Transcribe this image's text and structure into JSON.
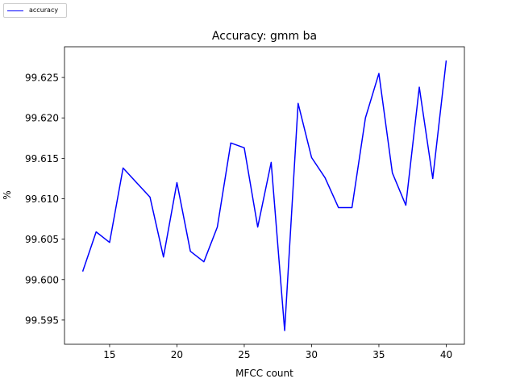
{
  "chart_data": {
    "type": "line",
    "title": "Accuracy: gmm ba",
    "xlabel": "MFCC count",
    "ylabel": "%",
    "xlim": [
      11.65,
      41.35
    ],
    "ylim": [
      99.592,
      99.6288
    ],
    "xticks": [
      15,
      20,
      25,
      30,
      35,
      40
    ],
    "xtick_labels": [
      "15",
      "20",
      "25",
      "30",
      "35",
      "40"
    ],
    "yticks": [
      99.595,
      99.6,
      99.605,
      99.61,
      99.615,
      99.62,
      99.625
    ],
    "ytick_labels": [
      "99.595",
      "99.600",
      "99.605",
      "99.610",
      "99.615",
      "99.620",
      "99.625"
    ],
    "grid": false,
    "legend_position": "top-left",
    "series": [
      {
        "name": "accuracy",
        "color": "#0000ff",
        "x": [
          13,
          14,
          15,
          16,
          17,
          18,
          19,
          20,
          21,
          22,
          23,
          24,
          25,
          26,
          27,
          28,
          29,
          30,
          31,
          32,
          33,
          34,
          35,
          36,
          37,
          38,
          39,
          40
        ],
        "y": [
          99.601,
          99.6059,
          99.6046,
          99.6138,
          99.612,
          99.6102,
          99.6028,
          99.612,
          99.6035,
          99.6022,
          99.6065,
          99.6169,
          99.6163,
          99.6065,
          99.6145,
          99.5937,
          99.6218,
          99.6151,
          99.6126,
          99.6089,
          99.6089,
          99.62,
          99.6255,
          99.6132,
          99.6092,
          99.6238,
          99.6125,
          99.6271
        ]
      }
    ]
  }
}
